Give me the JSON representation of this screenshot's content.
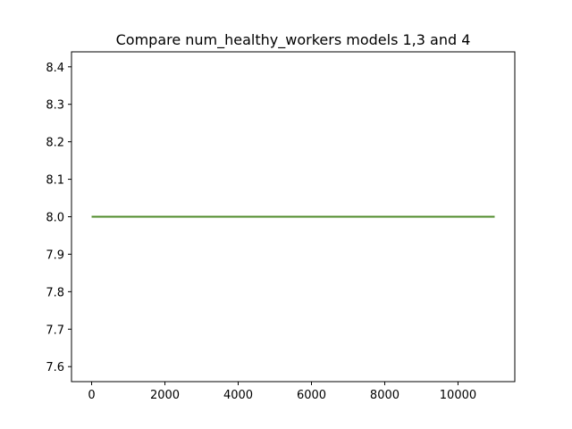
{
  "chart_data": {
    "type": "line",
    "title": "Compare num_healthy_workers models 1,3 and 4",
    "xlabel": "",
    "ylabel": "",
    "xlim": [
      -550,
      11550
    ],
    "ylim": [
      7.56,
      8.44
    ],
    "grid": false,
    "xticks": [
      0,
      2000,
      4000,
      6000,
      8000,
      10000
    ],
    "xtick_labels": [
      "0",
      "2000",
      "4000",
      "6000",
      "8000",
      "10000"
    ],
    "yticks": [
      7.6,
      7.7,
      7.8,
      7.9,
      8.0,
      8.1,
      8.2,
      8.3,
      8.4
    ],
    "ytick_labels": [
      "7.6",
      "7.7",
      "7.8",
      "7.9",
      "8.0",
      "8.1",
      "8.2",
      "8.3",
      "8.4"
    ],
    "series": [
      {
        "color": "#1f77b4",
        "x": [
          0,
          11000
        ],
        "y": [
          8.0,
          8.0
        ]
      },
      {
        "color": "#ff7f0e",
        "x": [
          0,
          11000
        ],
        "y": [
          8.0,
          8.0
        ]
      },
      {
        "color": "#2ca02c",
        "x": [
          0,
          11000
        ],
        "y": [
          8.0,
          8.0
        ]
      },
      {
        "color": "#4f8b2a",
        "x": [
          0,
          11000
        ],
        "y": [
          8.0,
          8.0
        ]
      }
    ]
  }
}
